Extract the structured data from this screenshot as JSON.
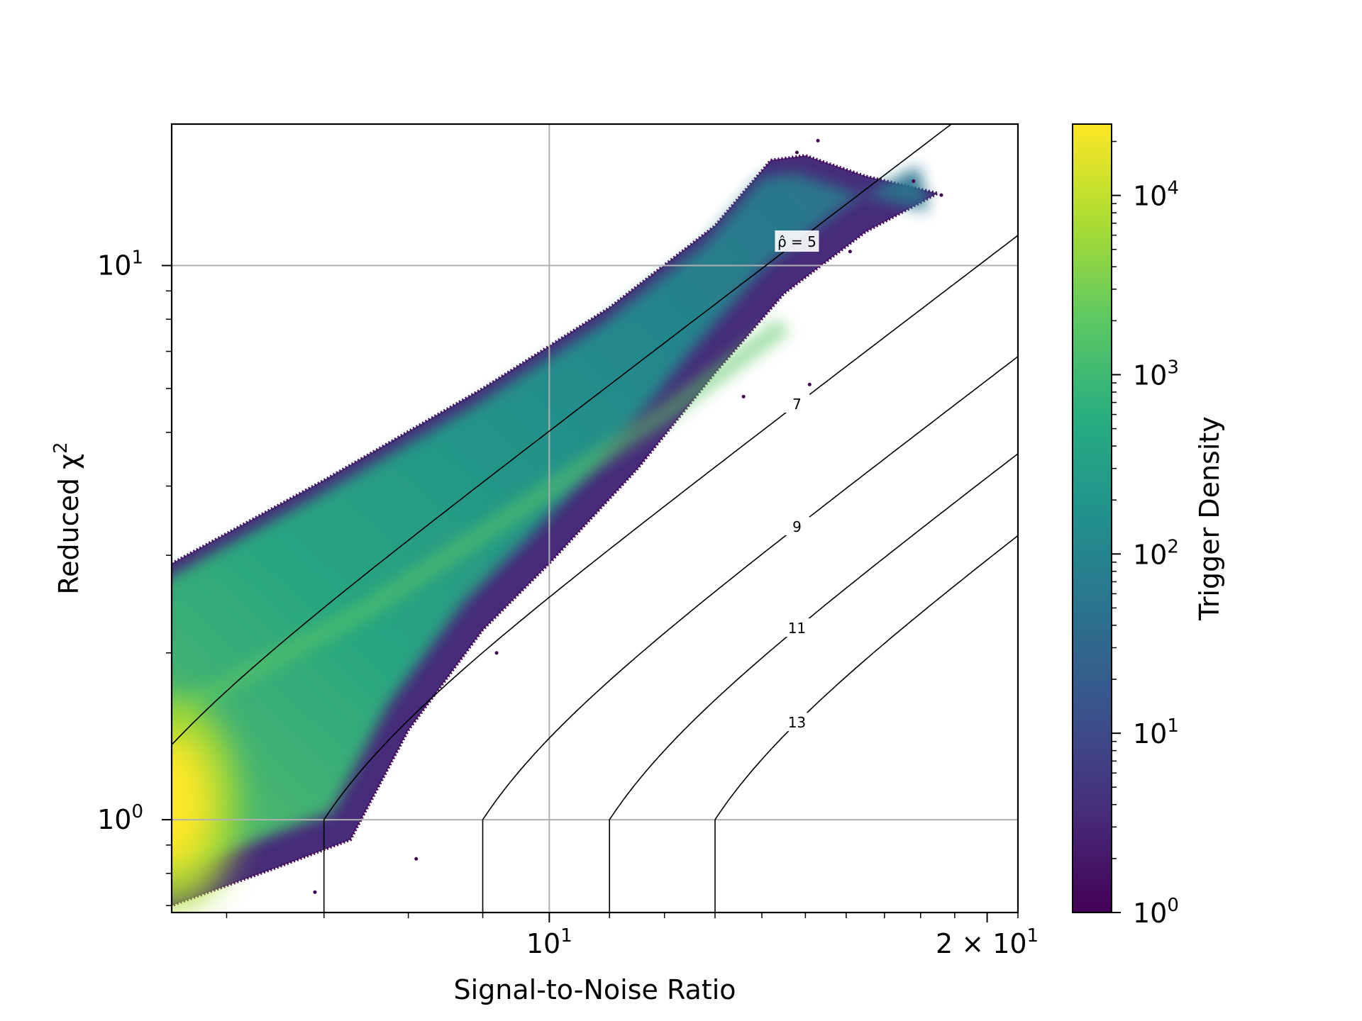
{
  "chart_data": {
    "type": "heatmap",
    "title": "",
    "xlabel": "Signal-to-Noise Ratio",
    "ylabel": "Reduced χ²",
    "x_scale": "log",
    "y_scale": "log",
    "xlim": [
      5.5,
      21
    ],
    "ylim": [
      0.68,
      18
    ],
    "grid": true,
    "x_ticks": [
      {
        "value": 10,
        "base": "10",
        "exp": "1"
      },
      {
        "value": 20,
        "base": "2 × 10",
        "exp": "1"
      }
    ],
    "y_ticks": [
      {
        "value": 1,
        "base": "10",
        "exp": "0"
      },
      {
        "value": 10,
        "base": "10",
        "exp": "1"
      }
    ],
    "density_envelope": {
      "upper": [
        [
          5.5,
          2.9
        ],
        [
          7,
          4.1
        ],
        [
          9,
          6.0
        ],
        [
          11,
          8.4
        ],
        [
          13,
          11.8
        ],
        [
          14.2,
          15.5
        ],
        [
          15.0,
          15.8
        ],
        [
          16.5,
          14.5
        ],
        [
          18.5,
          13.5
        ]
      ],
      "lower": [
        [
          5.5,
          0.7
        ],
        [
          6.5,
          0.82
        ],
        [
          7.3,
          0.92
        ],
        [
          8.0,
          1.45
        ],
        [
          9.0,
          2.2
        ],
        [
          10.0,
          2.9
        ],
        [
          11.5,
          4.3
        ],
        [
          13.0,
          6.4
        ],
        [
          14.5,
          8.9
        ],
        [
          16.5,
          11.5
        ],
        [
          18.5,
          13.5
        ]
      ],
      "hot_core": [
        [
          5.5,
          1.35
        ],
        [
          5.75,
          1.0
        ],
        [
          5.5,
          0.85
        ]
      ],
      "ridge": [
        [
          5.5,
          1.55
        ],
        [
          7.5,
          2.4
        ],
        [
          9.5,
          3.6
        ],
        [
          12.0,
          5.4
        ],
        [
          14.5,
          7.8
        ]
      ],
      "outlier_points": [
        [
          15.3,
          16.8
        ],
        [
          14.8,
          16.0
        ],
        [
          17.8,
          14.2
        ],
        [
          18.6,
          13.4
        ],
        [
          16.1,
          10.6
        ],
        [
          15.1,
          6.1
        ],
        [
          13.6,
          5.8
        ],
        [
          9.2,
          2.0
        ],
        [
          8.1,
          0.85
        ],
        [
          6.9,
          0.74
        ]
      ]
    },
    "contours": {
      "formula": "chi2 <= 1: rho_hat = snr; chi2 > 1: rho_hat = snr / ((1 + chi2^3) / 2)^(1/6)",
      "levels": [
        {
          "value": 5,
          "label": "ρ̂ = 5",
          "boxed": true
        },
        {
          "value": 7,
          "label": "7",
          "boxed": false
        },
        {
          "value": 9,
          "label": "9",
          "boxed": false
        },
        {
          "value": 11,
          "label": "11",
          "boxed": false
        },
        {
          "value": 13,
          "label": "13",
          "boxed": false
        }
      ]
    },
    "colorbar": {
      "label": "Trigger Density",
      "scale": "log",
      "range": [
        1,
        25000
      ],
      "colormap": "viridis",
      "colors": [
        "#440154",
        "#472c7a",
        "#3b518b",
        "#2c718e",
        "#21908d",
        "#27ad81",
        "#5cc863",
        "#aadc32",
        "#fde725"
      ],
      "ticks": [
        {
          "value": 1,
          "base": "10",
          "exp": "0"
        },
        {
          "value": 10,
          "base": "10",
          "exp": "1"
        },
        {
          "value": 100,
          "base": "10",
          "exp": "2"
        },
        {
          "value": 1000,
          "base": "10",
          "exp": "3"
        },
        {
          "value": 10000,
          "base": "10",
          "exp": "4"
        }
      ]
    }
  }
}
